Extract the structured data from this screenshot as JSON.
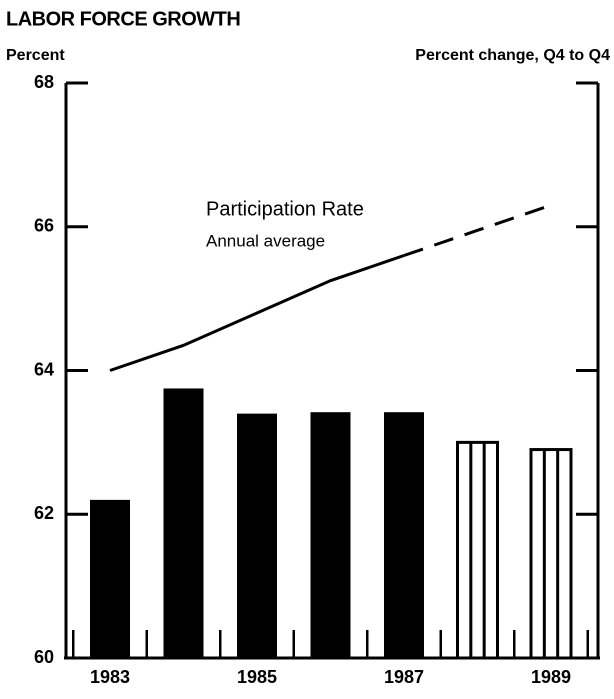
{
  "chart_data": {
    "type": "bar",
    "title": "LABOR FORCE GROWTH",
    "y_label": "Percent",
    "y2_label": "Percent change, Q4 to Q4",
    "categories": [
      "1983",
      null,
      "1985",
      null,
      "1987",
      null,
      "1989"
    ],
    "bars": {
      "values": [
        62.2,
        63.75,
        63.4,
        63.42,
        63.42,
        63.0,
        62.9
      ],
      "color": "#000000"
    },
    "line": {
      "label": "Participation Rate",
      "sublabel": "Annual average",
      "values": [
        64.0,
        64.35,
        64.8,
        65.25,
        65.6,
        65.95,
        66.3
      ],
      "color": "#000000"
    },
    "projected": [
      false,
      false,
      false,
      false,
      false,
      true,
      true
    ],
    "ylim": [
      60,
      68
    ],
    "yticks": [
      60,
      62,
      64,
      66,
      68
    ]
  }
}
